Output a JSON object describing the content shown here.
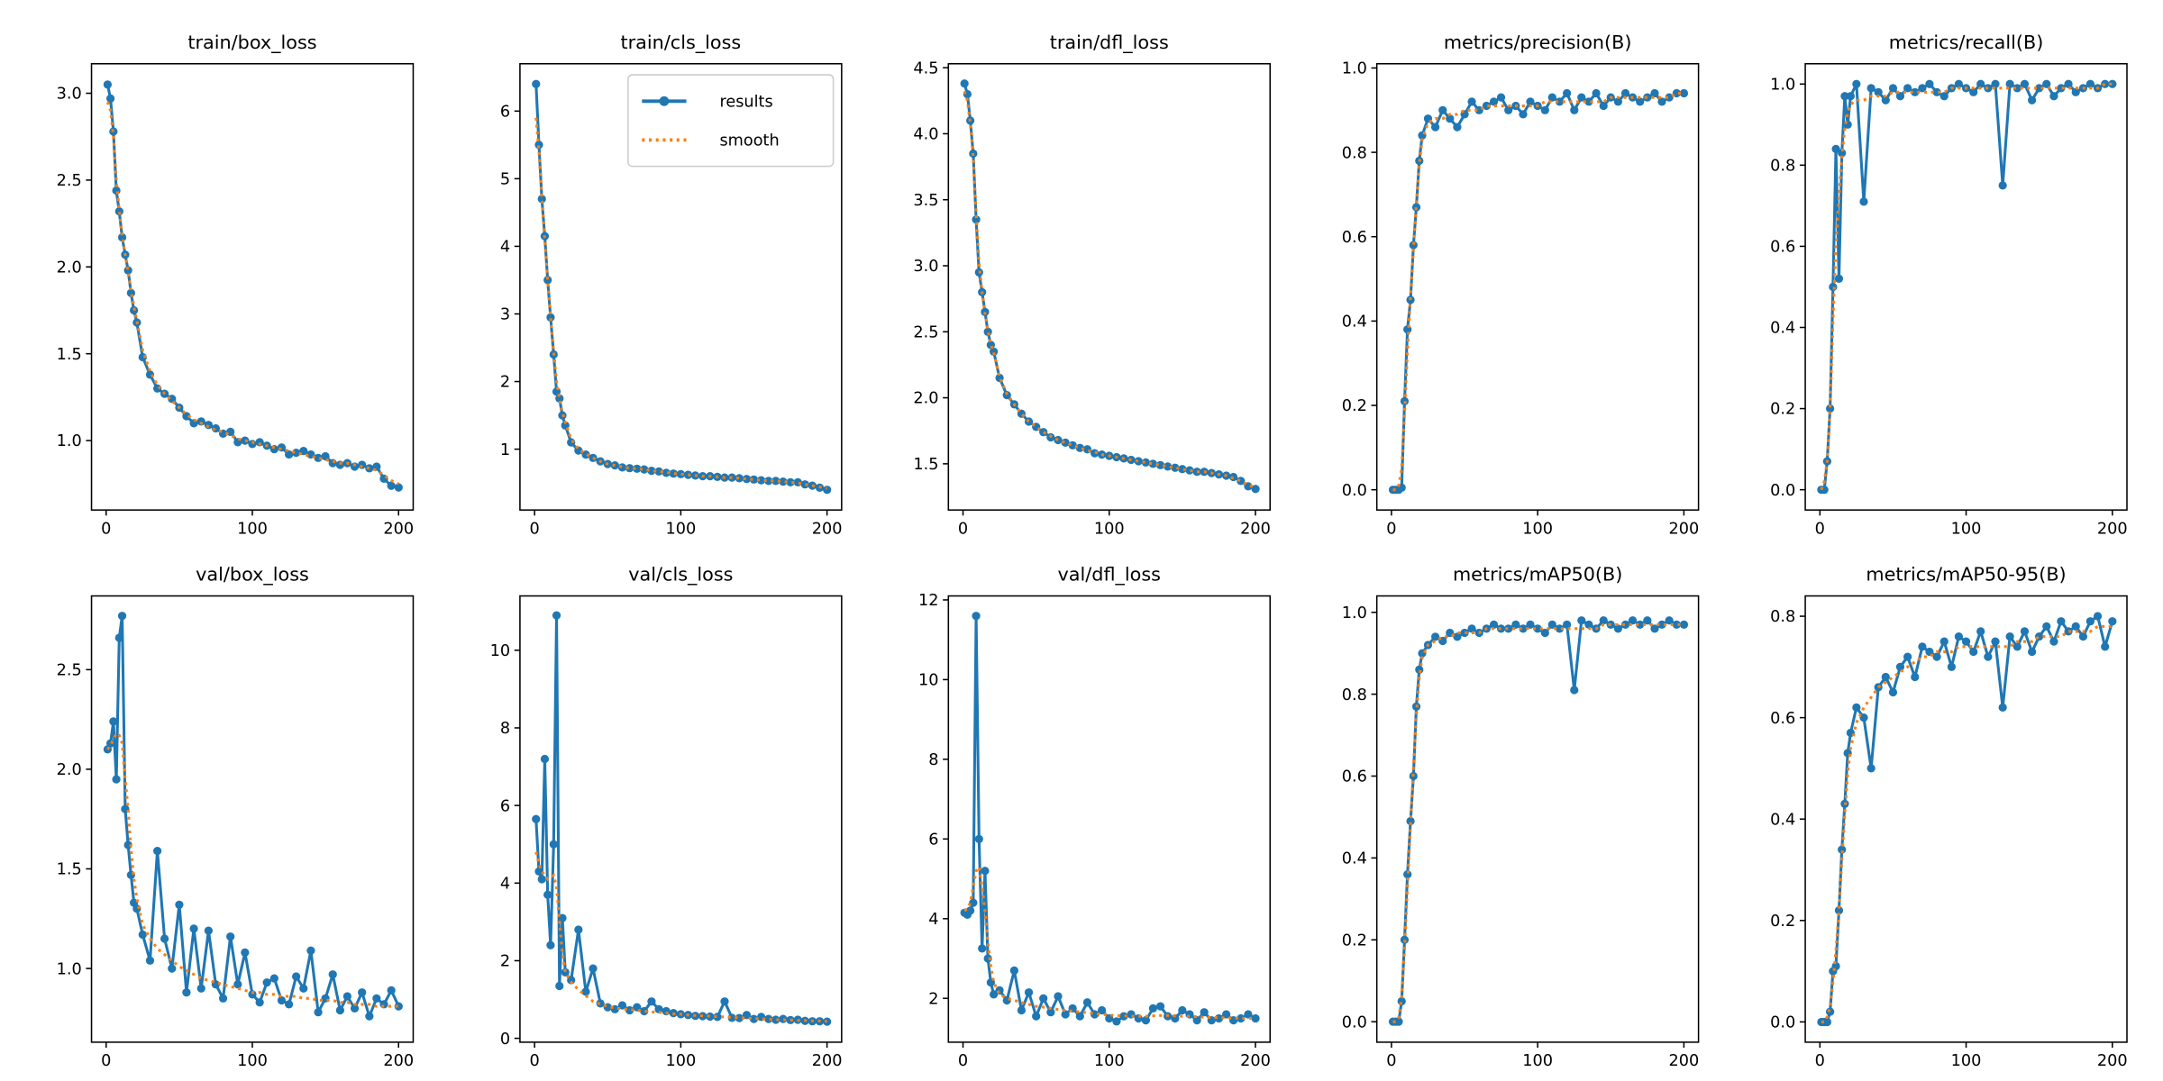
{
  "colors": {
    "results": "#1f77b4",
    "smooth": "#ff7f0e"
  },
  "legend": {
    "placement": "top-right",
    "panel": 1,
    "entries": [
      "results",
      "smooth"
    ]
  },
  "chart_data": [
    {
      "type": "line",
      "title": "train/box_loss",
      "xlim": [
        -10,
        210
      ],
      "ylim": [
        0.6,
        3.17
      ],
      "xticks": [
        0,
        100,
        200
      ],
      "yticks": [
        1.0,
        1.5,
        2.0,
        2.5,
        3.0
      ],
      "ytick_labels": [
        "1.0",
        "1.5",
        "2.0",
        "2.5",
        "3.0"
      ],
      "results": [
        3.05,
        2.97,
        2.78,
        2.44,
        2.32,
        2.17,
        2.07,
        1.98,
        1.85,
        1.75,
        1.68,
        1.48,
        1.38,
        1.3,
        1.27,
        1.24,
        1.19,
        1.14,
        1.1,
        1.11,
        1.09,
        1.07,
        1.04,
        1.05,
        0.99,
        1.0,
        0.98,
        0.99,
        0.97,
        0.95,
        0.96,
        0.92,
        0.93,
        0.94,
        0.92,
        0.9,
        0.91,
        0.87,
        0.86,
        0.87,
        0.85,
        0.86,
        0.84,
        0.85,
        0.78,
        0.74,
        0.73
      ],
      "smooth": [
        2.95,
        2.9,
        2.75,
        2.5,
        2.33,
        2.18,
        2.07,
        1.97,
        1.86,
        1.77,
        1.69,
        1.52,
        1.4,
        1.32,
        1.27,
        1.23,
        1.19,
        1.15,
        1.12,
        1.1,
        1.08,
        1.06,
        1.05,
        1.03,
        1.01,
        1.0,
        0.99,
        0.98,
        0.97,
        0.96,
        0.95,
        0.94,
        0.93,
        0.92,
        0.91,
        0.9,
        0.89,
        0.88,
        0.87,
        0.87,
        0.86,
        0.85,
        0.84,
        0.83,
        0.8,
        0.77,
        0.75
      ]
    },
    {
      "type": "line",
      "title": "train/cls_loss",
      "xlim": [
        -10,
        210
      ],
      "ylim": [
        0.1,
        6.7
      ],
      "xticks": [
        0,
        100,
        200
      ],
      "yticks": [
        1,
        2,
        3,
        4,
        5,
        6
      ],
      "ytick_labels": [
        "1",
        "2",
        "3",
        "4",
        "5",
        "6"
      ],
      "results": [
        6.4,
        5.5,
        4.7,
        4.15,
        3.5,
        2.95,
        2.4,
        1.85,
        1.75,
        1.5,
        1.35,
        1.1,
        0.98,
        0.92,
        0.87,
        0.82,
        0.78,
        0.76,
        0.73,
        0.72,
        0.71,
        0.7,
        0.68,
        0.67,
        0.65,
        0.64,
        0.63,
        0.62,
        0.61,
        0.6,
        0.6,
        0.59,
        0.58,
        0.58,
        0.57,
        0.56,
        0.55,
        0.54,
        0.53,
        0.53,
        0.52,
        0.51,
        0.51,
        0.48,
        0.46,
        0.43,
        0.4
      ],
      "smooth": [
        5.9,
        5.4,
        4.7,
        4.1,
        3.5,
        2.95,
        2.45,
        2.0,
        1.75,
        1.55,
        1.4,
        1.15,
        1.0,
        0.93,
        0.87,
        0.82,
        0.78,
        0.76,
        0.74,
        0.72,
        0.71,
        0.7,
        0.68,
        0.67,
        0.66,
        0.64,
        0.63,
        0.62,
        0.61,
        0.6,
        0.6,
        0.59,
        0.58,
        0.58,
        0.57,
        0.56,
        0.55,
        0.54,
        0.53,
        0.53,
        0.52,
        0.51,
        0.5,
        0.48,
        0.46,
        0.44,
        0.42
      ]
    },
    {
      "type": "line",
      "title": "train/dfl_loss",
      "xlim": [
        -10,
        210
      ],
      "ylim": [
        1.15,
        4.53
      ],
      "xticks": [
        0,
        100,
        200
      ],
      "yticks": [
        1.5,
        2.0,
        2.5,
        3.0,
        3.5,
        4.0,
        4.5
      ],
      "ytick_labels": [
        "1.5",
        "2.0",
        "2.5",
        "3.0",
        "3.5",
        "4.0",
        "4.5"
      ],
      "results": [
        4.38,
        4.3,
        4.1,
        3.85,
        3.35,
        2.95,
        2.8,
        2.65,
        2.5,
        2.4,
        2.35,
        2.15,
        2.02,
        1.95,
        1.88,
        1.82,
        1.78,
        1.74,
        1.7,
        1.68,
        1.66,
        1.64,
        1.62,
        1.61,
        1.58,
        1.57,
        1.56,
        1.55,
        1.54,
        1.53,
        1.52,
        1.51,
        1.5,
        1.49,
        1.48,
        1.47,
        1.46,
        1.45,
        1.44,
        1.44,
        1.43,
        1.42,
        1.41,
        1.4,
        1.37,
        1.33,
        1.31
      ],
      "smooth": [
        4.32,
        4.25,
        4.08,
        3.82,
        3.4,
        3.02,
        2.8,
        2.64,
        2.51,
        2.41,
        2.34,
        2.16,
        2.03,
        1.95,
        1.88,
        1.82,
        1.78,
        1.74,
        1.71,
        1.68,
        1.66,
        1.64,
        1.62,
        1.6,
        1.59,
        1.57,
        1.56,
        1.55,
        1.54,
        1.53,
        1.52,
        1.51,
        1.5,
        1.49,
        1.48,
        1.47,
        1.46,
        1.45,
        1.44,
        1.44,
        1.43,
        1.42,
        1.41,
        1.39,
        1.37,
        1.34,
        1.32
      ]
    },
    {
      "type": "line",
      "title": "metrics/precision(B)",
      "xlim": [
        -10,
        210
      ],
      "ylim": [
        -0.048,
        1.01
      ],
      "xticks": [
        0,
        100,
        200
      ],
      "yticks": [
        0,
        0.2,
        0.4,
        0.6,
        0.8,
        1.0
      ],
      "ytick_labels": [
        "0.0",
        "0.2",
        "0.4",
        "0.6",
        "0.8",
        "1.0"
      ],
      "results": [
        0,
        0,
        0,
        0.005,
        0.21,
        0.38,
        0.45,
        0.58,
        0.67,
        0.78,
        0.84,
        0.88,
        0.86,
        0.9,
        0.88,
        0.86,
        0.89,
        0.92,
        0.9,
        0.91,
        0.92,
        0.93,
        0.9,
        0.91,
        0.89,
        0.92,
        0.91,
        0.9,
        0.93,
        0.92,
        0.94,
        0.9,
        0.93,
        0.92,
        0.94,
        0.91,
        0.93,
        0.92,
        0.94,
        0.93,
        0.92,
        0.93,
        0.94,
        0.92,
        0.93,
        0.94,
        0.94
      ],
      "smooth": [
        0,
        0,
        0.01,
        0.05,
        0.18,
        0.33,
        0.46,
        0.57,
        0.68,
        0.77,
        0.83,
        0.87,
        0.88,
        0.88,
        0.89,
        0.89,
        0.9,
        0.9,
        0.9,
        0.91,
        0.91,
        0.91,
        0.91,
        0.91,
        0.91,
        0.91,
        0.91,
        0.92,
        0.92,
        0.92,
        0.92,
        0.92,
        0.92,
        0.92,
        0.92,
        0.92,
        0.93,
        0.93,
        0.93,
        0.93,
        0.93,
        0.93,
        0.93,
        0.93,
        0.93,
        0.94,
        0.94
      ]
    },
    {
      "type": "line",
      "title": "metrics/recall(B)",
      "xlim": [
        -10,
        210
      ],
      "ylim": [
        -0.05,
        1.05
      ],
      "xticks": [
        0,
        100,
        200
      ],
      "yticks": [
        0,
        0.2,
        0.4,
        0.6,
        0.8,
        1.0
      ],
      "ytick_labels": [
        "0.0",
        "0.2",
        "0.4",
        "0.6",
        "0.8",
        "1.0"
      ],
      "results": [
        0,
        0,
        0.07,
        0.2,
        0.5,
        0.84,
        0.52,
        0.83,
        0.97,
        0.9,
        0.97,
        1.0,
        0.71,
        0.99,
        0.98,
        0.96,
        0.99,
        0.97,
        0.99,
        0.98,
        0.99,
        1.0,
        0.98,
        0.97,
        0.99,
        1.0,
        0.99,
        0.98,
        1.0,
        0.99,
        1.0,
        0.75,
        1.0,
        0.99,
        1.0,
        0.96,
        0.99,
        1.0,
        0.97,
        0.99,
        1.0,
        0.98,
        0.99,
        1.0,
        0.99,
        1.0,
        1.0
      ],
      "smooth": [
        0,
        0.02,
        0.07,
        0.2,
        0.42,
        0.6,
        0.72,
        0.82,
        0.89,
        0.93,
        0.95,
        0.96,
        0.96,
        0.97,
        0.97,
        0.97,
        0.98,
        0.98,
        0.98,
        0.98,
        0.98,
        0.98,
        0.98,
        0.98,
        0.99,
        0.99,
        0.99,
        0.99,
        0.99,
        0.99,
        0.99,
        0.99,
        0.99,
        0.99,
        0.99,
        0.99,
        0.99,
        0.99,
        0.99,
        0.99,
        0.99,
        0.99,
        0.99,
        0.99,
        0.99,
        1.0,
        1.0
      ]
    },
    {
      "type": "line",
      "title": "val/box_loss",
      "xlim": [
        -10,
        210
      ],
      "ylim": [
        0.63,
        2.87
      ],
      "xticks": [
        0,
        100,
        200
      ],
      "yticks": [
        1.0,
        1.5,
        2.0,
        2.5
      ],
      "ytick_labels": [
        "1.0",
        "1.5",
        "2.0",
        "2.5"
      ],
      "results": [
        2.1,
        2.13,
        2.24,
        1.95,
        2.66,
        2.77,
        1.8,
        1.62,
        1.47,
        1.33,
        1.3,
        1.17,
        1.04,
        1.59,
        1.15,
        1.0,
        1.32,
        0.88,
        1.2,
        0.9,
        1.19,
        0.92,
        0.85,
        1.16,
        0.92,
        1.08,
        0.87,
        0.83,
        0.93,
        0.95,
        0.84,
        0.82,
        0.96,
        0.9,
        1.09,
        0.78,
        0.85,
        0.97,
        0.79,
        0.86,
        0.8,
        0.88,
        0.76,
        0.85,
        0.82,
        0.89,
        0.81
      ],
      "smooth": [
        2.1,
        2.12,
        2.15,
        2.18,
        2.17,
        2.13,
        1.95,
        1.8,
        1.6,
        1.45,
        1.35,
        1.22,
        1.15,
        1.1,
        1.07,
        1.04,
        1.01,
        0.99,
        0.97,
        0.95,
        0.94,
        0.93,
        0.92,
        0.91,
        0.9,
        0.89,
        0.88,
        0.88,
        0.87,
        0.87,
        0.86,
        0.86,
        0.86,
        0.85,
        0.85,
        0.84,
        0.84,
        0.84,
        0.83,
        0.83,
        0.82,
        0.82,
        0.82,
        0.81,
        0.81,
        0.81,
        0.81
      ]
    },
    {
      "type": "line",
      "title": "val/cls_loss",
      "xlim": [
        -10,
        210
      ],
      "ylim": [
        -0.1,
        11.4
      ],
      "xticks": [
        0,
        100,
        200
      ],
      "yticks": [
        0,
        2,
        4,
        6,
        8,
        10
      ],
      "ytick_labels": [
        "0",
        "2",
        "4",
        "6",
        "8",
        "10"
      ],
      "results": [
        5.65,
        4.3,
        4.1,
        7.2,
        3.7,
        2.4,
        5.0,
        10.9,
        1.35,
        3.1,
        1.7,
        1.5,
        2.8,
        1.2,
        1.8,
        0.9,
        0.8,
        0.75,
        0.85,
        0.72,
        0.8,
        0.7,
        0.95,
        0.75,
        0.7,
        0.65,
        0.62,
        0.6,
        0.58,
        0.57,
        0.56,
        0.55,
        0.95,
        0.53,
        0.52,
        0.6,
        0.5,
        0.55,
        0.5,
        0.48,
        0.5,
        0.47,
        0.48,
        0.45,
        0.44,
        0.44,
        0.43
      ],
      "smooth": [
        4.8,
        4.5,
        4.3,
        4.2,
        4.1,
        4.15,
        4.2,
        3.9,
        3.0,
        2.2,
        1.7,
        1.45,
        1.25,
        1.1,
        0.95,
        0.88,
        0.82,
        0.78,
        0.76,
        0.74,
        0.72,
        0.7,
        0.68,
        0.67,
        0.65,
        0.63,
        0.62,
        0.6,
        0.59,
        0.58,
        0.57,
        0.56,
        0.55,
        0.54,
        0.53,
        0.52,
        0.51,
        0.5,
        0.49,
        0.48,
        0.48,
        0.47,
        0.46,
        0.46,
        0.45,
        0.45,
        0.44
      ]
    },
    {
      "type": "line",
      "title": "val/dfl_loss",
      "xlim": [
        -10,
        210
      ],
      "ylim": [
        0.9,
        12.1
      ],
      "xticks": [
        0,
        100,
        200
      ],
      "yticks": [
        2,
        4,
        6,
        8,
        10,
        12
      ],
      "ytick_labels": [
        "2",
        "4",
        "6",
        "8",
        "10",
        "12"
      ],
      "results": [
        4.15,
        4.1,
        4.2,
        4.4,
        11.6,
        6.0,
        3.25,
        5.2,
        3.0,
        2.4,
        2.1,
        2.2,
        1.95,
        2.7,
        1.7,
        2.15,
        1.55,
        2.0,
        1.65,
        2.05,
        1.6,
        1.75,
        1.55,
        1.9,
        1.6,
        1.7,
        1.5,
        1.42,
        1.55,
        1.6,
        1.5,
        1.45,
        1.75,
        1.8,
        1.55,
        1.5,
        1.7,
        1.6,
        1.45,
        1.65,
        1.45,
        1.5,
        1.6,
        1.45,
        1.5,
        1.6,
        1.5
      ],
      "smooth": [
        4.2,
        4.25,
        4.4,
        4.8,
        5.2,
        5.3,
        4.8,
        4.2,
        3.4,
        2.8,
        2.4,
        2.1,
        2.0,
        1.95,
        1.9,
        1.85,
        1.8,
        1.78,
        1.75,
        1.72,
        1.7,
        1.68,
        1.66,
        1.64,
        1.62,
        1.6,
        1.58,
        1.57,
        1.56,
        1.55,
        1.55,
        1.55,
        1.56,
        1.57,
        1.57,
        1.56,
        1.55,
        1.55,
        1.54,
        1.53,
        1.52,
        1.52,
        1.51,
        1.51,
        1.5,
        1.5,
        1.5
      ]
    },
    {
      "type": "line",
      "title": "metrics/mAP50(B)",
      "xlim": [
        -10,
        210
      ],
      "ylim": [
        -0.05,
        1.04
      ],
      "xticks": [
        0,
        100,
        200
      ],
      "yticks": [
        0,
        0.2,
        0.4,
        0.6,
        0.8,
        1.0
      ],
      "ytick_labels": [
        "0.0",
        "0.2",
        "0.4",
        "0.6",
        "0.8",
        "1.0"
      ],
      "results": [
        0,
        0,
        0,
        0.05,
        0.2,
        0.36,
        0.49,
        0.6,
        0.77,
        0.86,
        0.9,
        0.92,
        0.94,
        0.93,
        0.95,
        0.94,
        0.95,
        0.96,
        0.95,
        0.96,
        0.97,
        0.96,
        0.96,
        0.97,
        0.96,
        0.97,
        0.96,
        0.95,
        0.97,
        0.96,
        0.97,
        0.81,
        0.98,
        0.97,
        0.96,
        0.98,
        0.97,
        0.96,
        0.97,
        0.98,
        0.97,
        0.98,
        0.96,
        0.97,
        0.98,
        0.97,
        0.97
      ],
      "smooth": [
        0,
        0,
        0.01,
        0.06,
        0.18,
        0.33,
        0.48,
        0.62,
        0.75,
        0.84,
        0.89,
        0.92,
        0.93,
        0.94,
        0.94,
        0.95,
        0.95,
        0.95,
        0.95,
        0.96,
        0.96,
        0.96,
        0.96,
        0.96,
        0.96,
        0.96,
        0.96,
        0.96,
        0.96,
        0.96,
        0.96,
        0.96,
        0.96,
        0.96,
        0.96,
        0.97,
        0.97,
        0.97,
        0.97,
        0.97,
        0.97,
        0.97,
        0.97,
        0.97,
        0.97,
        0.97,
        0.97
      ]
    },
    {
      "type": "line",
      "title": "metrics/mAP50-95(B)",
      "xlim": [
        -10,
        210
      ],
      "ylim": [
        -0.04,
        0.84
      ],
      "xticks": [
        0,
        100,
        200
      ],
      "yticks": [
        0,
        0.2,
        0.4,
        0.6,
        0.8
      ],
      "ytick_labels": [
        "0.0",
        "0.2",
        "0.4",
        "0.6",
        "0.8"
      ],
      "results": [
        0,
        0,
        0,
        0.02,
        0.1,
        0.11,
        0.22,
        0.34,
        0.43,
        0.53,
        0.57,
        0.62,
        0.6,
        0.5,
        0.66,
        0.68,
        0.65,
        0.7,
        0.72,
        0.68,
        0.74,
        0.73,
        0.72,
        0.75,
        0.7,
        0.76,
        0.75,
        0.73,
        0.77,
        0.72,
        0.75,
        0.62,
        0.76,
        0.74,
        0.77,
        0.73,
        0.76,
        0.78,
        0.75,
        0.79,
        0.77,
        0.78,
        0.76,
        0.79,
        0.8,
        0.74,
        0.79
      ],
      "smooth": [
        0,
        0,
        0.01,
        0.03,
        0.08,
        0.14,
        0.22,
        0.32,
        0.41,
        0.49,
        0.54,
        0.59,
        0.62,
        0.64,
        0.66,
        0.67,
        0.68,
        0.69,
        0.7,
        0.71,
        0.72,
        0.72,
        0.73,
        0.73,
        0.73,
        0.74,
        0.74,
        0.74,
        0.74,
        0.74,
        0.74,
        0.74,
        0.74,
        0.75,
        0.75,
        0.75,
        0.76,
        0.76,
        0.76,
        0.76,
        0.77,
        0.77,
        0.77,
        0.77,
        0.78,
        0.78,
        0.78
      ]
    }
  ],
  "x": [
    1,
    3,
    5,
    7,
    9,
    11,
    13,
    15,
    17,
    19,
    21,
    25,
    30,
    35,
    40,
    45,
    50,
    55,
    60,
    65,
    70,
    75,
    80,
    85,
    90,
    95,
    100,
    105,
    110,
    115,
    120,
    125,
    130,
    135,
    140,
    145,
    150,
    155,
    160,
    165,
    170,
    175,
    180,
    185,
    190,
    195,
    200
  ]
}
